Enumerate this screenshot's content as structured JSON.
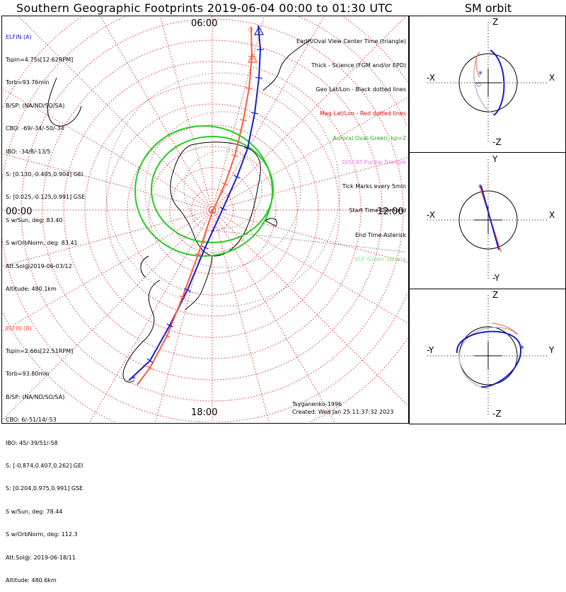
{
  "title": "Southern Geographic Footprints 2019-06-04 00:00 to 01:30 UTC",
  "sm_title": "SM orbit",
  "colors": {
    "elfin_a": "#1a1ad0",
    "elfin_b": "#ff5a3c",
    "oval": "#22cc22",
    "grid": "#e03030",
    "legend_purple": "#e07ae0"
  },
  "hour_labels": {
    "top": "06:00",
    "left": "00:00",
    "right": "12:00",
    "bottom": "18:00"
  },
  "elfin_a": {
    "name": "ELFIN (A)",
    "lines": [
      "Tspin=4.75s[12.62RPM]",
      "Torb=93.76min",
      "B/SP: (NA/ND/SO/SA)",
      "CBO: -69/-34/-50/-34",
      "IBO: -34/8/-13/5",
      "S: [0.130,-0.405,0.904] GEI",
      "S: [0.025,-0.125,0.991] GSE",
      "S w/Sun, deg: 83.40",
      "S w/OrbNorm, deg: 83.41",
      "Att.Sol@2019-06-03/12",
      "Altitude: 480.1km"
    ]
  },
  "elfin_b": {
    "name": "ELFIN (B)",
    "lines": [
      "Tspin=2.66s[22.51RPM]",
      "Torb=93.80min",
      "B/SP: (NA/ND/SO/SA)",
      "CBO: 6/-51/14/-53",
      "IBO: 45/-39/51/-58",
      "S: [-0.874,0.407,0.262] GEI",
      "S: [0.204,0.975,0.991] GSE",
      "S w/Sun, deg: 78.44",
      "S w/OrbNorm, deg: 112.3",
      "Att.Sol@: 2019-06-18/11",
      "Altitude: 480.6km"
    ]
  },
  "legend": [
    {
      "text": "Earth/Oval View Center Time (triangle)",
      "color": "#000000"
    },
    {
      "text": "Thick - Science (FGM and/or EPD)",
      "color": "#000000"
    },
    {
      "text": "Geo Lat/Lon - Black dotted lines",
      "color": "#000000"
    },
    {
      "text": "Mag Lat/Lon - Red dotted lines",
      "color": "#e00000"
    },
    {
      "text": "Auroral Oval-Green, kp=2",
      "color": "#22aa22"
    },
    {
      "text": "DISCAT-Purple Triangle",
      "color": "#e07ae0"
    },
    {
      "text": "Tick Marks every 5min",
      "color": "#000000"
    },
    {
      "text": "Start Time-Diamond",
      "color": "#000000"
    },
    {
      "text": "End Time-Asterisk",
      "color": "#000000"
    },
    {
      "text": "VLF-Green Square",
      "color": "#8ee08e"
    }
  ],
  "credit": {
    "model": "Tsyganenko-1996",
    "created": "Created: Wed Jan 25 11:37:32 2023"
  },
  "sm_panels": [
    {
      "top": "Z",
      "bottom": "-Z",
      "left": "-X",
      "right": "X"
    },
    {
      "top": "Y",
      "bottom": "-Y",
      "left": "-X",
      "right": "X"
    },
    {
      "top": "Z",
      "bottom": "-Z",
      "left": "-Y",
      "right": "Y"
    }
  ],
  "chart_data": {
    "type": "polar-footprint-map",
    "projection": "south polar stereographic",
    "series": [
      {
        "name": "ELFIN (A)",
        "color": "#1a1ad0"
      },
      {
        "name": "ELFIN (B)",
        "color": "#ff5a3c"
      }
    ],
    "auroral_oval_kp": 2,
    "tick_interval_min": 5
  }
}
